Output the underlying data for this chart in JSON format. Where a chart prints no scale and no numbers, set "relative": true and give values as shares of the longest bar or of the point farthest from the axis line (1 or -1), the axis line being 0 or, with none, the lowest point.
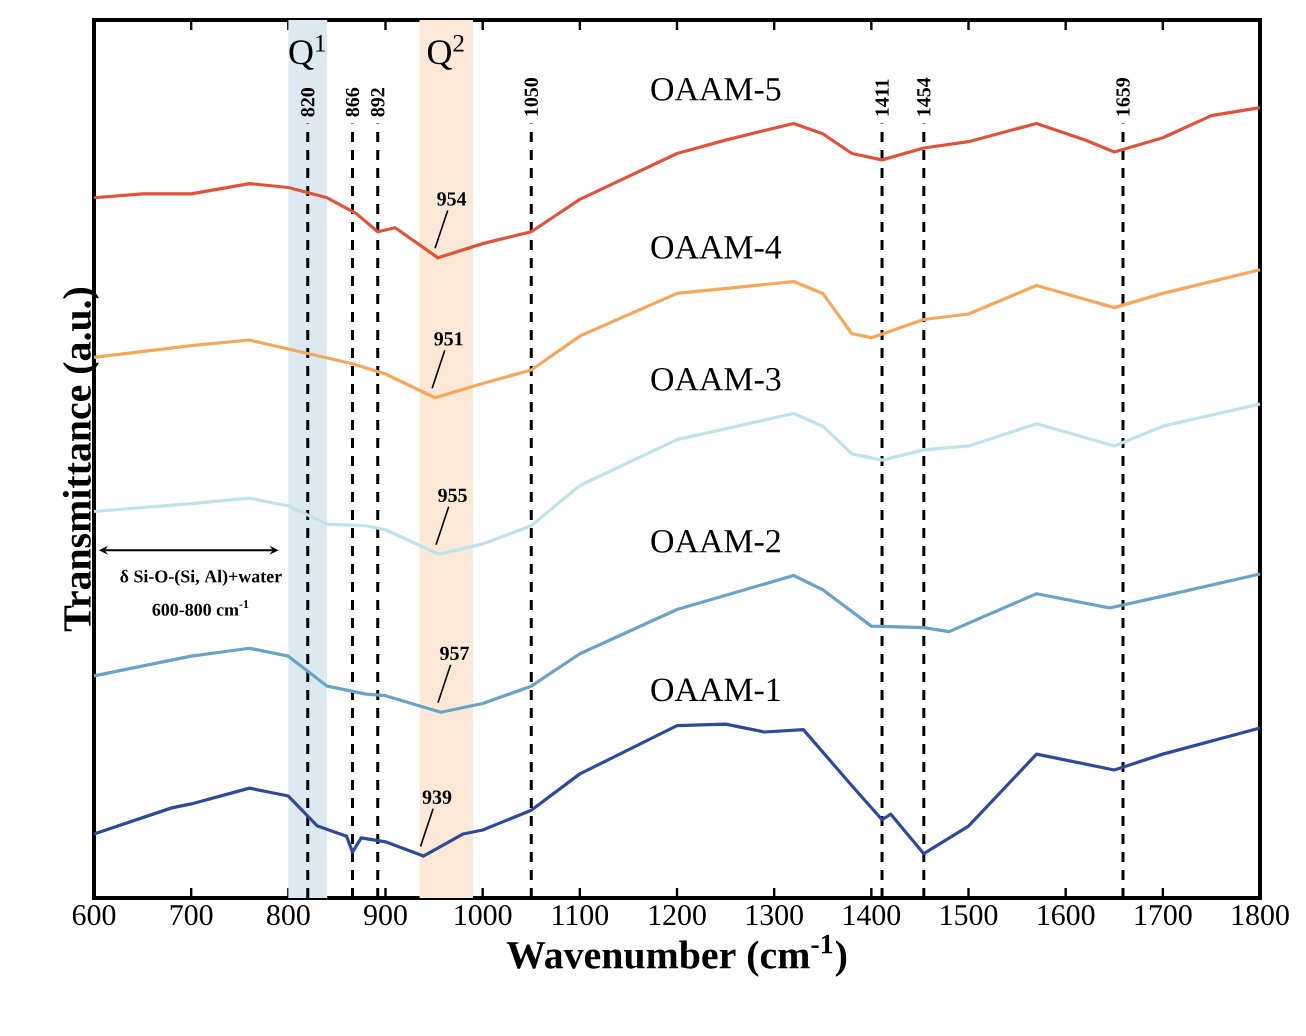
{
  "chart_data": {
    "type": "line",
    "relative": true,
    "xlabel": "Wavenumber (cm$^{-1}$)",
    "ylabel": "Transmittance (a.u.)",
    "xlim": [
      600,
      1800
    ],
    "xticks": [
      600,
      700,
      800,
      900,
      1000,
      1100,
      1200,
      1300,
      1400,
      1500,
      1600,
      1700,
      1800
    ],
    "series": [
      {
        "name": "OAAM-1",
        "color": "#2f4a9a",
        "x": [
          600,
          680,
          700,
          760,
          800,
          830,
          860,
          866,
          875,
          900,
          939,
          980,
          1000,
          1050,
          1100,
          1200,
          1250,
          1290,
          1330,
          1380,
          1411,
          1420,
          1454,
          1500,
          1570,
          1650,
          1700,
          1800
        ],
        "values": [
          0.081,
          0.114,
          0.119,
          0.139,
          0.129,
          0.091,
          0.078,
          0.058,
          0.076,
          0.071,
          0.053,
          0.081,
          0.086,
          0.111,
          0.157,
          0.218,
          0.22,
          0.21,
          0.213,
          0.142,
          0.099,
          0.106,
          0.056,
          0.091,
          0.182,
          0.162,
          0.182,
          0.215
        ]
      },
      {
        "name": "OAAM-2",
        "color": "#6aa3c8",
        "x": [
          600,
          700,
          760,
          800,
          840,
          880,
          900,
          957,
          1000,
          1050,
          1100,
          1200,
          1320,
          1350,
          1400,
          1454,
          1480,
          1570,
          1645,
          1700,
          1800
        ],
        "values": [
          0.281,
          0.306,
          0.316,
          0.306,
          0.268,
          0.258,
          0.256,
          0.235,
          0.246,
          0.268,
          0.309,
          0.365,
          0.408,
          0.39,
          0.344,
          0.342,
          0.337,
          0.385,
          0.367,
          0.382,
          0.41
        ]
      },
      {
        "name": "OAAM-3",
        "color": "#bfe3ea",
        "x": [
          600,
          700,
          760,
          800,
          840,
          880,
          900,
          955,
          1000,
          1050,
          1100,
          1200,
          1320,
          1350,
          1380,
          1411,
          1454,
          1500,
          1570,
          1650,
          1700,
          1800
        ],
        "values": [
          0.489,
          0.499,
          0.506,
          0.496,
          0.473,
          0.471,
          0.466,
          0.435,
          0.448,
          0.471,
          0.522,
          0.58,
          0.613,
          0.597,
          0.562,
          0.554,
          0.567,
          0.572,
          0.6,
          0.572,
          0.597,
          0.625
        ]
      },
      {
        "name": "OAAM-4",
        "color": "#f5a85a",
        "x": [
          600,
          700,
          760,
          820,
          866,
          900,
          951,
          1000,
          1050,
          1100,
          1200,
          1320,
          1350,
          1380,
          1400,
          1454,
          1500,
          1570,
          1650,
          1700,
          1800
        ],
        "values": [
          0.684,
          0.699,
          0.706,
          0.689,
          0.676,
          0.663,
          0.633,
          0.651,
          0.668,
          0.711,
          0.765,
          0.78,
          0.765,
          0.714,
          0.709,
          0.732,
          0.739,
          0.775,
          0.747,
          0.765,
          0.795
        ]
      },
      {
        "name": "OAAM-5",
        "color": "#e0533a",
        "x": [
          600,
          650,
          700,
          760,
          800,
          840,
          870,
          892,
          910,
          954,
          1000,
          1050,
          1100,
          1200,
          1250,
          1320,
          1350,
          1380,
          1411,
          1454,
          1500,
          1570,
          1620,
          1650,
          1700,
          1750,
          1800
        ],
        "values": [
          0.886,
          0.891,
          0.891,
          0.904,
          0.899,
          0.886,
          0.866,
          0.843,
          0.848,
          0.81,
          0.828,
          0.843,
          0.884,
          0.942,
          0.959,
          0.98,
          0.967,
          0.942,
          0.934,
          0.949,
          0.957,
          0.98,
          0.959,
          0.944,
          0.962,
          0.99,
          1.0
        ]
      }
    ],
    "ref_lines": [
      {
        "axis": "x",
        "value": 820,
        "label": "820",
        "line_style": "dashed"
      },
      {
        "axis": "x",
        "value": 866,
        "label": "866",
        "line_style": "dashed"
      },
      {
        "axis": "x",
        "value": 892,
        "label": "892",
        "line_style": "dashed"
      },
      {
        "axis": "x",
        "value": 1050,
        "label": "1050",
        "line_style": "dashed"
      },
      {
        "axis": "x",
        "value": 1411,
        "label": "1411",
        "line_style": "dashed"
      },
      {
        "axis": "x",
        "value": 1454,
        "label": "1454",
        "line_style": "dashed"
      },
      {
        "axis": "x",
        "value": 1659,
        "label": "1659",
        "line_style": "dashed"
      }
    ],
    "bands": [
      {
        "axis": "x",
        "from": 800,
        "to": 840,
        "label": "Q$^{1}$",
        "color": "#dde9f1"
      },
      {
        "axis": "x",
        "from": 935,
        "to": 990,
        "label": "Q$^{2}$",
        "color": "#fbe8d6"
      }
    ],
    "annotations": [
      "δ Si-O-(Si, Al)+water",
      "600-800 cm$^{-1}$",
      {
        "text": "954",
        "x": 954,
        "y": 0.81
      },
      {
        "text": "951",
        "x": 951,
        "y": 0.633
      },
      {
        "text": "955",
        "x": 955,
        "y": 0.435
      },
      {
        "text": "957",
        "x": 957,
        "y": 0.235
      },
      {
        "text": "939",
        "x": 939,
        "y": 0.053
      }
    ]
  }
}
